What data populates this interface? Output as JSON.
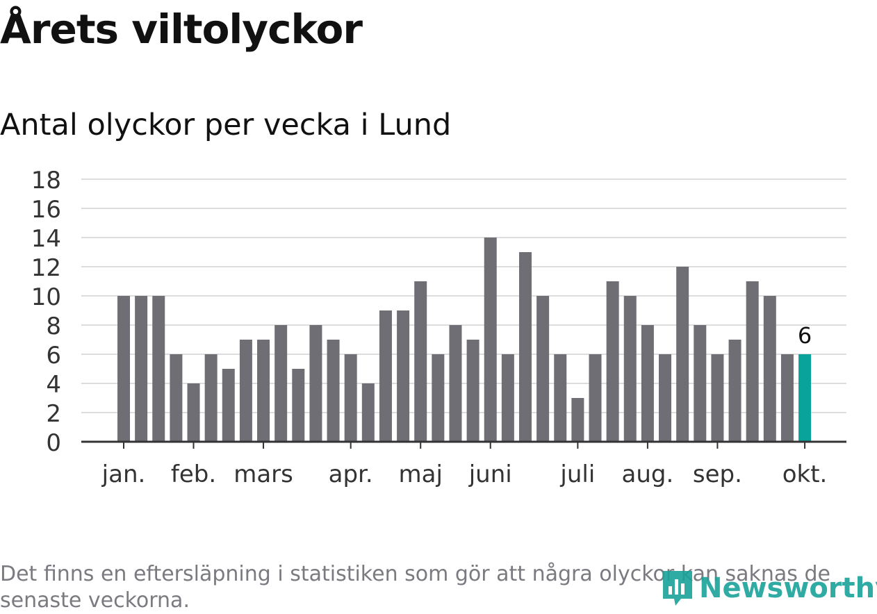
{
  "title": "Årets viltolyckor",
  "subtitle": "Antal olyckor per vecka i Lund",
  "footnote": "Det finns en eftersläpning i statistiken som gör att några olyckor kan saknas de senaste veckorna.",
  "logo": {
    "text": "Newsworthy",
    "icon": "newsworthy-logo-icon"
  },
  "colors": {
    "bar": "#6f6e75",
    "highlight": "#0aa39c",
    "grid": "#dddddd",
    "axis": "#333333"
  },
  "chart_data": {
    "type": "bar",
    "xlabel": "",
    "ylabel": "",
    "ylim": [
      0,
      18
    ],
    "y_ticks": [
      "0",
      "2",
      "4",
      "6",
      "8",
      "10",
      "12",
      "14",
      "16",
      "18"
    ],
    "grid": true,
    "values": [
      10,
      10,
      10,
      6,
      4,
      6,
      5,
      7,
      7,
      8,
      5,
      8,
      7,
      6,
      4,
      9,
      9,
      11,
      6,
      8,
      7,
      14,
      6,
      13,
      10,
      6,
      3,
      6,
      11,
      10,
      8,
      6,
      12,
      8,
      6,
      7,
      11,
      10,
      6,
      6
    ],
    "highlight_index": 39,
    "highlight_label": "6",
    "month_labels": [
      {
        "label": "jan.",
        "bar_index": 0
      },
      {
        "label": "feb.",
        "bar_index": 4
      },
      {
        "label": "mars",
        "bar_index": 8
      },
      {
        "label": "apr.",
        "bar_index": 13
      },
      {
        "label": "maj",
        "bar_index": 17
      },
      {
        "label": "juni",
        "bar_index": 21
      },
      {
        "label": "juli",
        "bar_index": 26
      },
      {
        "label": "aug.",
        "bar_index": 30
      },
      {
        "label": "sep.",
        "bar_index": 34
      },
      {
        "label": "okt.",
        "bar_index": 39
      }
    ]
  }
}
